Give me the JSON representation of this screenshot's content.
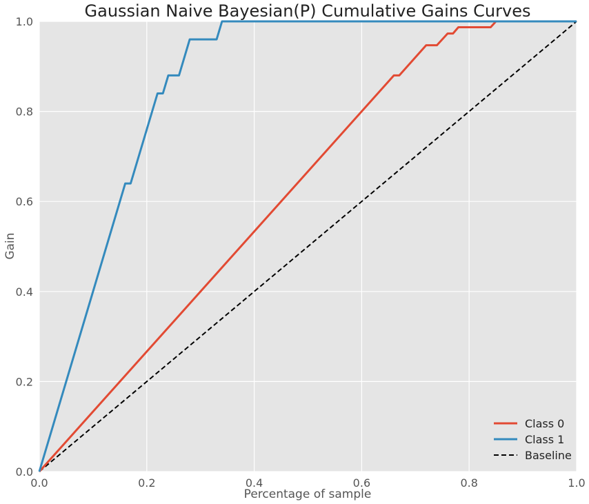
{
  "chart_data": {
    "type": "line",
    "title": "Gaussian Naive Bayesian(P) Cumulative Gains Curves",
    "xlabel": "Percentage of sample",
    "ylabel": "Gain",
    "xlim": [
      0,
      1
    ],
    "ylim": [
      0,
      1
    ],
    "x_ticks": [
      "0.0",
      "0.2",
      "0.4",
      "0.6",
      "0.8",
      "1.0"
    ],
    "y_ticks": [
      "0.0",
      "0.2",
      "0.4",
      "0.6",
      "0.8",
      "1.0"
    ],
    "grid": true,
    "legend_position": "bottom-right",
    "series": [
      {
        "name": "Class 0",
        "color": "#E24A33",
        "style": "solid",
        "x": [
          0,
          0.66,
          0.67,
          0.72,
          0.74,
          0.76,
          0.77,
          0.78,
          0.84,
          0.85,
          1.0
        ],
        "y": [
          0,
          0.88,
          0.88,
          0.947,
          0.947,
          0.973,
          0.973,
          0.987,
          0.987,
          1.0,
          1.0
        ]
      },
      {
        "name": "Class 1",
        "color": "#348ABD",
        "style": "solid",
        "x": [
          0,
          0.16,
          0.17,
          0.22,
          0.23,
          0.24,
          0.26,
          0.28,
          0.33,
          0.34,
          1.0
        ],
        "y": [
          0,
          0.64,
          0.64,
          0.84,
          0.84,
          0.88,
          0.88,
          0.96,
          0.96,
          1.0,
          1.0
        ]
      },
      {
        "name": "Baseline",
        "color": "#000000",
        "style": "dashed",
        "x": [
          0,
          1
        ],
        "y": [
          0,
          1
        ]
      }
    ]
  }
}
